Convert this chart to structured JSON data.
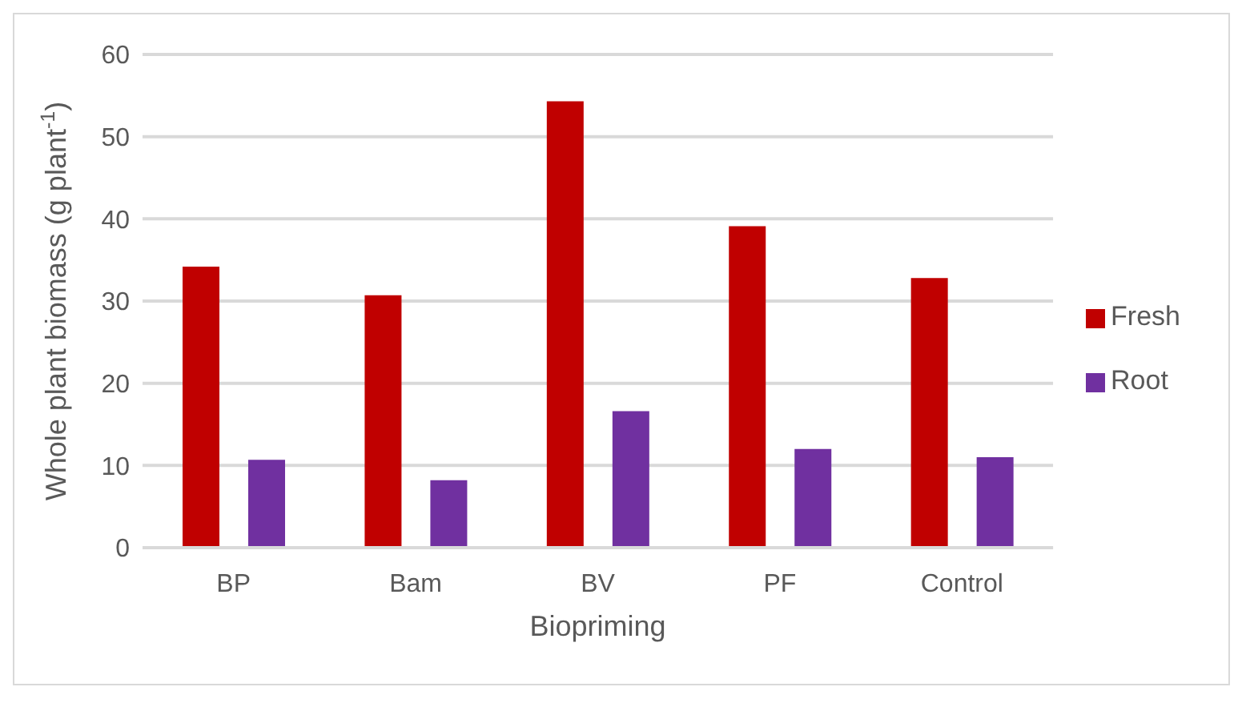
{
  "chart_data": {
    "type": "bar",
    "xlabel": "Biopriming",
    "ylabel": "Whole plant biomass (g plant$^{-1}$)",
    "categories": [
      "BP",
      "Bam",
      "BV",
      "PF",
      "Control"
    ],
    "series": [
      {
        "name": "Fresh",
        "color": "#c00000",
        "values": [
          34.2,
          30.7,
          54.3,
          39.1,
          32.8
        ]
      },
      {
        "name": "Root",
        "color": "#7030a0",
        "values": [
          10.7,
          8.2,
          16.6,
          12.0,
          11.0
        ]
      }
    ],
    "ylim": [
      0,
      60
    ],
    "yticks": [
      0,
      10,
      20,
      30,
      40,
      50,
      60
    ],
    "grid": "y",
    "legend": "right"
  }
}
